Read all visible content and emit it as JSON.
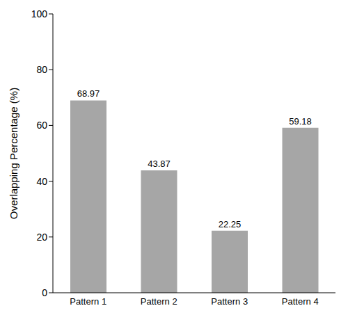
{
  "chart_data": {
    "type": "bar",
    "y_label": "Overlapping Percentage (%)",
    "categories": [
      "Pattern 1",
      "Pattern 2",
      "Pattern 3",
      "Pattern 4"
    ],
    "values": [
      68.97,
      43.87,
      22.25,
      59.18
    ],
    "color": "#a6a6a6",
    "ylim": [
      0,
      100
    ],
    "yticks": [
      0,
      20,
      40,
      60,
      80,
      100
    ],
    "grid": false,
    "data_labels": true
  }
}
